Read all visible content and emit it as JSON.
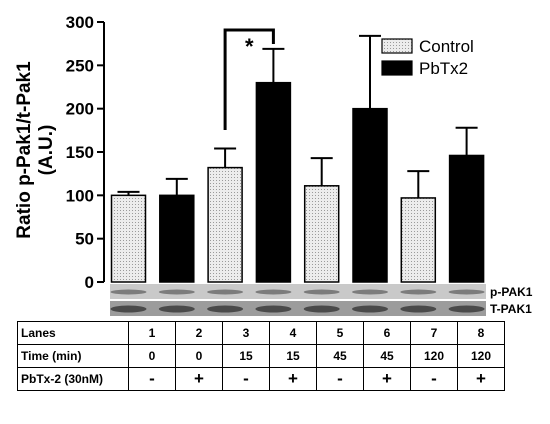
{
  "chart_data": {
    "type": "bar",
    "ylabel": "Ratio p-Pak1/t-Pak1\n(A.U.)",
    "ylim": [
      0,
      300
    ],
    "yticks": [
      "0",
      "50",
      "100",
      "150",
      "200",
      "250",
      "300"
    ],
    "series": [
      {
        "name": "Control",
        "color": "#e2e2e2",
        "pattern": "dotted",
        "values": [
          100,
          132,
          111,
          97
        ],
        "errors": [
          4,
          22,
          32,
          31
        ]
      },
      {
        "name": "PbTx2",
        "color": "#000000",
        "values": [
          100,
          230,
          200,
          146
        ],
        "errors": [
          19,
          39,
          84,
          32
        ]
      }
    ],
    "bar_order": [
      "Control",
      "PbTx2",
      "Control",
      "PbTx2",
      "Control",
      "PbTx2",
      "Control",
      "PbTx2"
    ],
    "significance": {
      "label": "*",
      "between_lanes": [
        3,
        4
      ]
    },
    "legend_position": "top-right",
    "blot_labels": [
      "p-PAK1",
      "T-PAK1"
    ]
  },
  "table": {
    "rows": [
      {
        "label": "Lanes",
        "cells": [
          "1",
          "2",
          "3",
          "4",
          "5",
          "6",
          "7",
          "8"
        ]
      },
      {
        "label": "Time (min)",
        "cells": [
          "0",
          "0",
          "15",
          "15",
          "45",
          "45",
          "120",
          "120"
        ]
      },
      {
        "label": "PbTx-2 (30nM)",
        "cells": [
          "-",
          "+",
          "-",
          "+",
          "-",
          "+",
          "-",
          "+"
        ]
      }
    ]
  }
}
